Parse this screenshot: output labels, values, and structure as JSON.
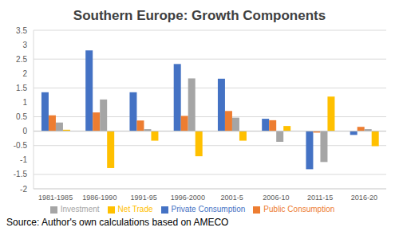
{
  "chart_data": {
    "type": "bar",
    "title": "Southern Europe: Growth Components",
    "source": "Source: Author's own calculations based on AMECO",
    "categories": [
      "1981-1985",
      "1986-1990",
      "1991-95",
      "1996-2000",
      "2001-5",
      "2006-10",
      "2011-15",
      "2016-20"
    ],
    "series": [
      {
        "name": "Private Consumption",
        "color": "#4472c4",
        "values": [
          1.35,
          2.8,
          1.35,
          2.33,
          1.82,
          0.43,
          -1.32,
          -0.13
        ]
      },
      {
        "name": "Public Consumption",
        "color": "#ed7d31",
        "values": [
          0.55,
          0.65,
          0.37,
          0.53,
          0.7,
          0.38,
          -0.05,
          0.15
        ]
      },
      {
        "name": "Investment",
        "color": "#a5a5a5",
        "values": [
          0.3,
          1.1,
          0.07,
          1.83,
          0.47,
          -0.37,
          -1.07,
          0.07
        ]
      },
      {
        "name": "Net Trade",
        "color": "#ffc000",
        "values": [
          0.05,
          -1.28,
          -0.33,
          -0.87,
          -0.33,
          0.18,
          1.2,
          -0.52
        ]
      }
    ],
    "ylim": [
      -2,
      3.5
    ],
    "yticks": [
      -2,
      -1.5,
      -1,
      -0.5,
      0,
      0.5,
      1,
      1.5,
      2,
      2.5,
      3,
      3.5
    ],
    "grid": true,
    "legend": "bottom"
  }
}
